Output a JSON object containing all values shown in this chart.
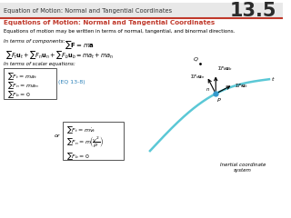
{
  "header_text": "Equation of Motion: Normal and Tangential Coordinates",
  "header_number": "13.5",
  "header_bg": "#e8e8e8",
  "header_line_color": "#c0392b",
  "title_text": "Equations of Motion: Normal and Tangential Coordinates",
  "title_color": "#c0392b",
  "body_color": "#000000",
  "bg_color": "#ffffff",
  "desc_text": "Equations of motion may be written in terms of normal, tangential, and binormal directions.",
  "comp_label": "In terms of components:",
  "scalar_label": "In terms of scalar equations:",
  "eq_label": "(EQ 13-8)",
  "eq_label_color": "#2980b9",
  "or_text": "or",
  "inertial_text": "Inertial coordinate\nsystem",
  "curve_color": "#5bc8d6",
  "arrow_color": "#000000",
  "point_color": "#3399cc"
}
